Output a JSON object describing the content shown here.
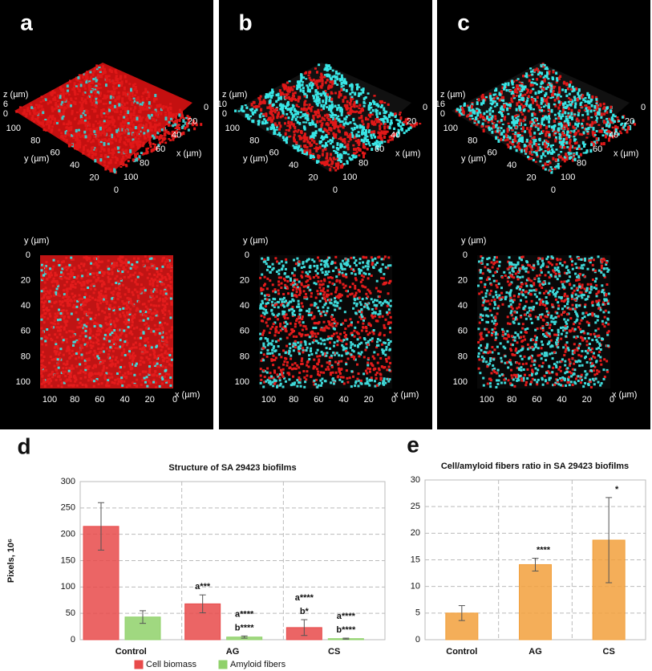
{
  "panels": [
    {
      "letter": "a",
      "view_3d": {
        "z_label": "z (µm)",
        "z_ticks": [
          "6",
          "0"
        ],
        "y_label": "y (µm)",
        "y_ticks": [
          "100",
          "80",
          "60",
          "40",
          "20",
          "0"
        ],
        "x_label": "x (µm)",
        "x_ticks": [
          "100",
          "80",
          "60",
          "40",
          "20",
          "0"
        ]
      },
      "view_2d": {
        "y_label": "y (µm)",
        "y_ticks": [
          "0",
          "20",
          "40",
          "60",
          "80",
          "100"
        ],
        "x_label": "x (µm)",
        "x_ticks": [
          "100",
          "80",
          "60",
          "40",
          "20",
          "0"
        ]
      }
    },
    {
      "letter": "b",
      "view_3d": {
        "z_label": "z (µm)",
        "z_ticks": [
          "10",
          "0"
        ],
        "y_label": "y (µm)",
        "y_ticks": [
          "100",
          "80",
          "60",
          "40",
          "20",
          "0"
        ],
        "x_label": "x (µm)",
        "x_ticks": [
          "100",
          "80",
          "60",
          "40",
          "20",
          "0"
        ]
      },
      "view_2d": {
        "y_label": "y (µm)",
        "y_ticks": [
          "0",
          "20",
          "40",
          "60",
          "80",
          "100"
        ],
        "x_label": "x (µm)",
        "x_ticks": [
          "100",
          "80",
          "60",
          "40",
          "20",
          "0"
        ]
      }
    },
    {
      "letter": "c",
      "view_3d": {
        "z_label": "z (µm)",
        "z_ticks": [
          "16",
          "0"
        ],
        "y_label": "y (µm)",
        "y_ticks": [
          "100",
          "80",
          "60",
          "40",
          "20",
          "0"
        ],
        "x_label": "x (µm)",
        "x_ticks": [
          "100",
          "80",
          "60",
          "40",
          "20",
          "0"
        ]
      },
      "view_2d": {
        "y_label": "y (µm)",
        "y_ticks": [
          "0",
          "20",
          "40",
          "60",
          "80",
          "100"
        ],
        "x_label": "x (µm)",
        "x_ticks": [
          "100",
          "80",
          "60",
          "40",
          "20",
          "0"
        ]
      }
    }
  ],
  "chart_data": [
    {
      "type": "bar",
      "letter": "d",
      "title": "Structure of SA 29423 biofilms",
      "y_label": "Pixels, 10⁶",
      "categories": [
        "Control",
        "AG",
        "CS"
      ],
      "series": [
        {
          "name": "Cell biomass",
          "color": "#e84a4a",
          "values": [
            215,
            68,
            23
          ],
          "errors": [
            45,
            17,
            15
          ],
          "annotations": [
            null,
            [
              "a***"
            ],
            [
              "a****",
              "b*"
            ]
          ]
        },
        {
          "name": "Amyloid fibers",
          "color": "#8fd16a",
          "values": [
            43,
            5,
            2
          ],
          "errors": [
            12,
            2,
            1
          ],
          "annotations": [
            null,
            [
              "a****",
              "b****"
            ],
            [
              "a****",
              "b****"
            ]
          ]
        }
      ],
      "ylim": [
        0,
        300
      ],
      "yticks": [
        0,
        50,
        100,
        150,
        200,
        250,
        300
      ],
      "grid": true,
      "legend": "bottom"
    },
    {
      "type": "bar",
      "letter": "e",
      "title": "Cell/amyloid fibers ratio in SA 29423 biofilms",
      "categories": [
        "Control",
        "AG",
        "CS"
      ],
      "series": [
        {
          "color": "#f2a03c",
          "values": [
            5,
            14.1,
            18.7
          ],
          "errors": [
            1.4,
            1.2,
            8
          ],
          "annotations": [
            null,
            [
              "****"
            ],
            [
              "*"
            ]
          ]
        }
      ],
      "ylim": [
        0,
        30
      ],
      "yticks": [
        0,
        5,
        10,
        15,
        20,
        25,
        30
      ],
      "grid": true
    }
  ]
}
